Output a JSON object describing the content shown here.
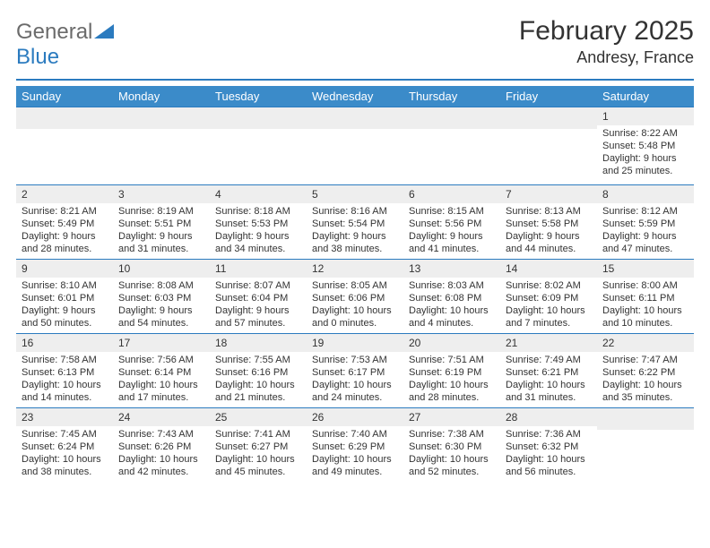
{
  "logo": {
    "line1": "General",
    "line2": "Blue"
  },
  "title": "February 2025",
  "location": "Andresy, France",
  "colors": {
    "header_bg": "#3b8bc9",
    "accent": "#2b7bbf",
    "daynum_bg": "#eeeeee",
    "text": "#333333",
    "logo_gray": "#6b6b6b",
    "background": "#ffffff"
  },
  "weekdays": [
    "Sunday",
    "Monday",
    "Tuesday",
    "Wednesday",
    "Thursday",
    "Friday",
    "Saturday"
  ],
  "weeks": [
    [
      {
        "blank": true
      },
      {
        "blank": true
      },
      {
        "blank": true
      },
      {
        "blank": true
      },
      {
        "blank": true
      },
      {
        "blank": true
      },
      {
        "n": "1",
        "sunrise": "Sunrise: 8:22 AM",
        "sunset": "Sunset: 5:48 PM",
        "daylight": "Daylight: 9 hours and 25 minutes."
      }
    ],
    [
      {
        "n": "2",
        "sunrise": "Sunrise: 8:21 AM",
        "sunset": "Sunset: 5:49 PM",
        "daylight": "Daylight: 9 hours and 28 minutes."
      },
      {
        "n": "3",
        "sunrise": "Sunrise: 8:19 AM",
        "sunset": "Sunset: 5:51 PM",
        "daylight": "Daylight: 9 hours and 31 minutes."
      },
      {
        "n": "4",
        "sunrise": "Sunrise: 8:18 AM",
        "sunset": "Sunset: 5:53 PM",
        "daylight": "Daylight: 9 hours and 34 minutes."
      },
      {
        "n": "5",
        "sunrise": "Sunrise: 8:16 AM",
        "sunset": "Sunset: 5:54 PM",
        "daylight": "Daylight: 9 hours and 38 minutes."
      },
      {
        "n": "6",
        "sunrise": "Sunrise: 8:15 AM",
        "sunset": "Sunset: 5:56 PM",
        "daylight": "Daylight: 9 hours and 41 minutes."
      },
      {
        "n": "7",
        "sunrise": "Sunrise: 8:13 AM",
        "sunset": "Sunset: 5:58 PM",
        "daylight": "Daylight: 9 hours and 44 minutes."
      },
      {
        "n": "8",
        "sunrise": "Sunrise: 8:12 AM",
        "sunset": "Sunset: 5:59 PM",
        "daylight": "Daylight: 9 hours and 47 minutes."
      }
    ],
    [
      {
        "n": "9",
        "sunrise": "Sunrise: 8:10 AM",
        "sunset": "Sunset: 6:01 PM",
        "daylight": "Daylight: 9 hours and 50 minutes."
      },
      {
        "n": "10",
        "sunrise": "Sunrise: 8:08 AM",
        "sunset": "Sunset: 6:03 PM",
        "daylight": "Daylight: 9 hours and 54 minutes."
      },
      {
        "n": "11",
        "sunrise": "Sunrise: 8:07 AM",
        "sunset": "Sunset: 6:04 PM",
        "daylight": "Daylight: 9 hours and 57 minutes."
      },
      {
        "n": "12",
        "sunrise": "Sunrise: 8:05 AM",
        "sunset": "Sunset: 6:06 PM",
        "daylight": "Daylight: 10 hours and 0 minutes."
      },
      {
        "n": "13",
        "sunrise": "Sunrise: 8:03 AM",
        "sunset": "Sunset: 6:08 PM",
        "daylight": "Daylight: 10 hours and 4 minutes."
      },
      {
        "n": "14",
        "sunrise": "Sunrise: 8:02 AM",
        "sunset": "Sunset: 6:09 PM",
        "daylight": "Daylight: 10 hours and 7 minutes."
      },
      {
        "n": "15",
        "sunrise": "Sunrise: 8:00 AM",
        "sunset": "Sunset: 6:11 PM",
        "daylight": "Daylight: 10 hours and 10 minutes."
      }
    ],
    [
      {
        "n": "16",
        "sunrise": "Sunrise: 7:58 AM",
        "sunset": "Sunset: 6:13 PM",
        "daylight": "Daylight: 10 hours and 14 minutes."
      },
      {
        "n": "17",
        "sunrise": "Sunrise: 7:56 AM",
        "sunset": "Sunset: 6:14 PM",
        "daylight": "Daylight: 10 hours and 17 minutes."
      },
      {
        "n": "18",
        "sunrise": "Sunrise: 7:55 AM",
        "sunset": "Sunset: 6:16 PM",
        "daylight": "Daylight: 10 hours and 21 minutes."
      },
      {
        "n": "19",
        "sunrise": "Sunrise: 7:53 AM",
        "sunset": "Sunset: 6:17 PM",
        "daylight": "Daylight: 10 hours and 24 minutes."
      },
      {
        "n": "20",
        "sunrise": "Sunrise: 7:51 AM",
        "sunset": "Sunset: 6:19 PM",
        "daylight": "Daylight: 10 hours and 28 minutes."
      },
      {
        "n": "21",
        "sunrise": "Sunrise: 7:49 AM",
        "sunset": "Sunset: 6:21 PM",
        "daylight": "Daylight: 10 hours and 31 minutes."
      },
      {
        "n": "22",
        "sunrise": "Sunrise: 7:47 AM",
        "sunset": "Sunset: 6:22 PM",
        "daylight": "Daylight: 10 hours and 35 minutes."
      }
    ],
    [
      {
        "n": "23",
        "sunrise": "Sunrise: 7:45 AM",
        "sunset": "Sunset: 6:24 PM",
        "daylight": "Daylight: 10 hours and 38 minutes."
      },
      {
        "n": "24",
        "sunrise": "Sunrise: 7:43 AM",
        "sunset": "Sunset: 6:26 PM",
        "daylight": "Daylight: 10 hours and 42 minutes."
      },
      {
        "n": "25",
        "sunrise": "Sunrise: 7:41 AM",
        "sunset": "Sunset: 6:27 PM",
        "daylight": "Daylight: 10 hours and 45 minutes."
      },
      {
        "n": "26",
        "sunrise": "Sunrise: 7:40 AM",
        "sunset": "Sunset: 6:29 PM",
        "daylight": "Daylight: 10 hours and 49 minutes."
      },
      {
        "n": "27",
        "sunrise": "Sunrise: 7:38 AM",
        "sunset": "Sunset: 6:30 PM",
        "daylight": "Daylight: 10 hours and 52 minutes."
      },
      {
        "n": "28",
        "sunrise": "Sunrise: 7:36 AM",
        "sunset": "Sunset: 6:32 PM",
        "daylight": "Daylight: 10 hours and 56 minutes."
      },
      {
        "blank": true
      }
    ]
  ]
}
